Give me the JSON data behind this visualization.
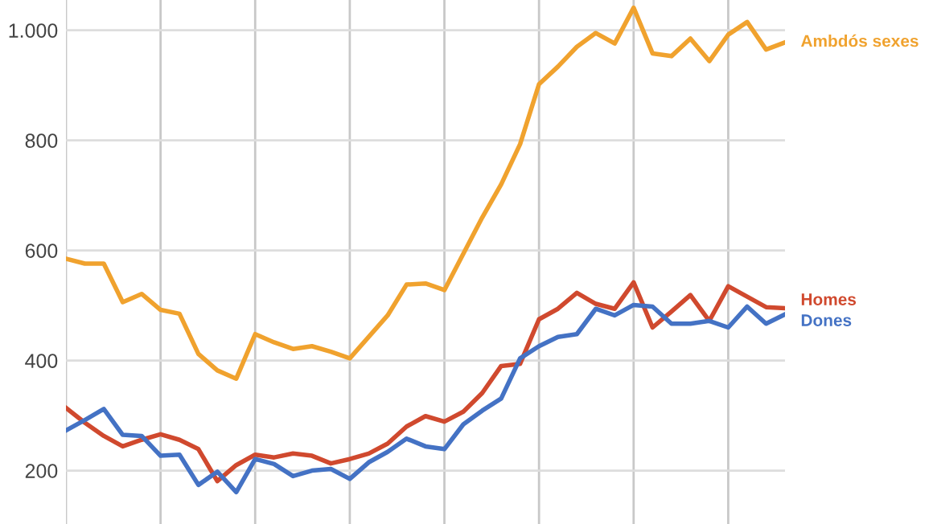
{
  "chart_data": {
    "type": "line",
    "categories": [
      null,
      null,
      null,
      null,
      null,
      null,
      null,
      null,
      null,
      null,
      null,
      null,
      null,
      null,
      null,
      null,
      null,
      null,
      null,
      null,
      null,
      null,
      null,
      null,
      null,
      null,
      null,
      null,
      null,
      null,
      null,
      null,
      null,
      null,
      null,
      null,
      null,
      null,
      null
    ],
    "series": [
      {
        "name": "Ambdós sexes",
        "color": "#f0a22e",
        "values": [
          585,
          576,
          576,
          506,
          521,
          492,
          485,
          412,
          382,
          367,
          448,
          433,
          421,
          426,
          416,
          404,
          443,
          482,
          538,
          540,
          528,
          594,
          660,
          720,
          793,
          902,
          934,
          970,
          995,
          976,
          1041,
          958,
          953,
          985,
          944,
          992,
          1015,
          965,
          978
        ]
      },
      {
        "name": "Homes",
        "color": "#d0492e",
        "values": [
          314,
          287,
          263,
          244,
          256,
          266,
          256,
          239,
          181,
          210,
          229,
          224,
          231,
          227,
          213,
          221,
          231,
          249,
          280,
          299,
          289,
          307,
          341,
          390,
          394,
          475,
          494,
          523,
          503,
          494,
          542,
          460,
          489,
          519,
          472,
          535,
          516,
          497,
          495
        ]
      },
      {
        "name": "Dones",
        "color": "#4472c4",
        "values": [
          273,
          292,
          312,
          265,
          263,
          227,
          229,
          174,
          198,
          161,
          221,
          212,
          190,
          200,
          203,
          185,
          215,
          234,
          258,
          244,
          239,
          284,
          309,
          331,
          404,
          426,
          443,
          448,
          494,
          482,
          501,
          498,
          467,
          467,
          472,
          460,
          498,
          467,
          484
        ]
      }
    ],
    "ylim": [
      103,
      1055
    ],
    "yticks": [
      200,
      400,
      600,
      800,
      {
        "value": 1000,
        "label": "1.000"
      }
    ],
    "grid": true,
    "marker": "none",
    "line_style": "solid"
  }
}
